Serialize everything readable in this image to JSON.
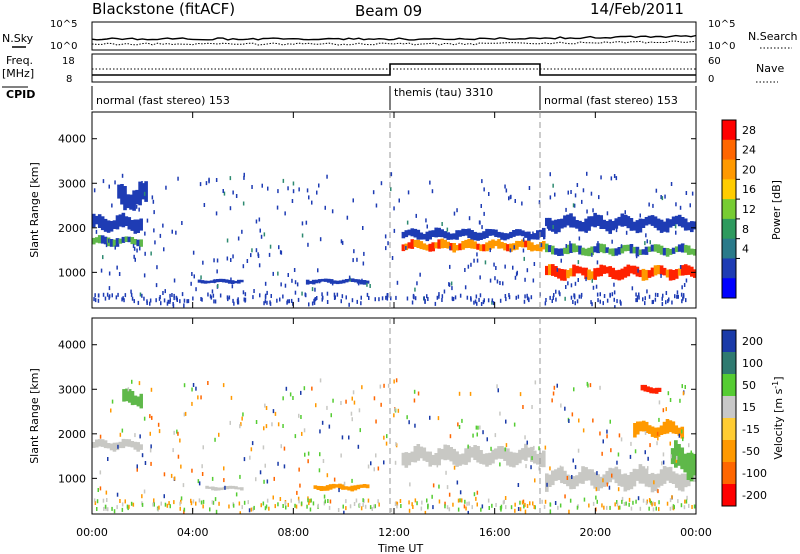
{
  "header": {
    "station": "Blackstone (fitACF)",
    "beam": "Beam 09",
    "date": "14/Feb/2011"
  },
  "summary_panel": {
    "nsky_label": "N.Sky",
    "nsearch_label": "N.Search",
    "noise_ticks": [
      "10^5",
      "10^0"
    ],
    "freq_label_line1": "Freq.",
    "freq_label_line2": "[MHz]",
    "freq_ticks": [
      "18",
      "8"
    ],
    "nave_label": "Nave",
    "nave_ticks": [
      "60",
      "0"
    ],
    "cpid_label": "CPID",
    "cpid_segments": [
      {
        "label": "normal (fast stereo) 153",
        "start_hour": 0,
        "end_hour": 12
      },
      {
        "label": "themis (tau) 3310",
        "start_hour": 12,
        "end_hour": 18
      },
      {
        "label": "normal (fast stereo) 153",
        "start_hour": 18,
        "end_hour": 24
      }
    ]
  },
  "power_colorbar": {
    "label": "Power [dB]",
    "ticks": [
      "28",
      "24",
      "20",
      "16",
      "12",
      "8",
      "4"
    ],
    "colors": [
      "#ff0000",
      "#ff6600",
      "#ff9900",
      "#ffcc00",
      "#77cc33",
      "#2e9a5e",
      "#2a7a8a",
      "#1e3cb4",
      "#0000ff"
    ]
  },
  "velocity_colorbar": {
    "label_main": "Velocity [m s",
    "label_sup": "-1",
    "label_end": "]",
    "ticks": [
      "200",
      "100",
      "50",
      "15",
      "-15",
      "-50",
      "-100",
      "-200"
    ],
    "colors": [
      "#1a3aa8",
      "#2f7a70",
      "#55cc33",
      "#c8c8c8",
      "#ffcc33",
      "#ff9900",
      "#ff6600",
      "#ff0000"
    ]
  },
  "chart_data": [
    {
      "type": "heatmap",
      "panel": "power",
      "ylabel": "Slant Range [km]",
      "ylim": [
        200,
        4600
      ],
      "yticks": [
        "4000",
        "3000",
        "2000",
        "1000"
      ],
      "xlim_hours": [
        0,
        24
      ],
      "xticks": [
        "00:00",
        "04:00",
        "08:00",
        "12:00",
        "16:00",
        "20:00",
        "00:00"
      ],
      "bands": [
        {
          "start_hour": 0.0,
          "end_hour": 2.0,
          "center_km": 1700,
          "width_km": 180,
          "level": "green"
        },
        {
          "start_hour": 0.0,
          "end_hour": 2.0,
          "center_km": 2100,
          "width_km": 300,
          "level": "blue"
        },
        {
          "start_hour": 1.0,
          "end_hour": 2.2,
          "center_km": 2700,
          "width_km": 500,
          "level": "blue"
        },
        {
          "start_hour": 4.2,
          "end_hour": 6.0,
          "center_km": 800,
          "width_km": 80,
          "level": "blue"
        },
        {
          "start_hour": 8.5,
          "end_hour": 11.0,
          "center_km": 800,
          "width_km": 100,
          "level": "blue"
        },
        {
          "start_hour": 12.3,
          "end_hour": 18.0,
          "center_km": 1600,
          "width_km": 200,
          "level": "orange"
        },
        {
          "start_hour": 12.3,
          "end_hour": 18.0,
          "center_km": 1850,
          "width_km": 200,
          "level": "blue"
        },
        {
          "start_hour": 18.0,
          "end_hour": 24.0,
          "center_km": 1000,
          "width_km": 250,
          "level": "red"
        },
        {
          "start_hour": 18.0,
          "end_hour": 24.0,
          "center_km": 1500,
          "width_km": 200,
          "level": "green"
        },
        {
          "start_hour": 18.0,
          "end_hour": 24.0,
          "center_km": 2100,
          "width_km": 300,
          "level": "blue"
        }
      ]
    },
    {
      "type": "heatmap",
      "panel": "velocity",
      "ylabel": "Slant Range [km]",
      "ylim": [
        200,
        4600
      ],
      "yticks": [
        "4000",
        "3000",
        "2000",
        "1000"
      ],
      "xlim_hours": [
        0,
        24
      ],
      "xticks": [
        "00:00",
        "04:00",
        "08:00",
        "12:00",
        "16:00",
        "20:00",
        "00:00"
      ],
      "xlabel": "Time UT",
      "bands": [
        {
          "start_hour": 0.0,
          "end_hour": 2.0,
          "center_km": 1750,
          "width_km": 200,
          "level": "gray"
        },
        {
          "start_hour": 1.2,
          "end_hour": 2.0,
          "center_km": 2800,
          "width_km": 300,
          "level": "green"
        },
        {
          "start_hour": 4.5,
          "end_hour": 6.0,
          "center_km": 780,
          "width_km": 80,
          "level": "gray"
        },
        {
          "start_hour": 8.8,
          "end_hour": 11.0,
          "center_km": 800,
          "width_km": 120,
          "level": "orange"
        },
        {
          "start_hour": 12.3,
          "end_hour": 18.0,
          "center_km": 1500,
          "width_km": 350,
          "level": "gray"
        },
        {
          "start_hour": 18.0,
          "end_hour": 24.0,
          "center_km": 1000,
          "width_km": 400,
          "level": "gray"
        },
        {
          "start_hour": 21.5,
          "end_hour": 23.5,
          "center_km": 2100,
          "width_km": 300,
          "level": "orange"
        },
        {
          "start_hour": 23.0,
          "end_hour": 24.0,
          "center_km": 1400,
          "width_km": 600,
          "level": "green"
        },
        {
          "start_hour": 21.8,
          "end_hour": 22.6,
          "center_km": 3000,
          "width_km": 150,
          "level": "red"
        }
      ]
    }
  ]
}
